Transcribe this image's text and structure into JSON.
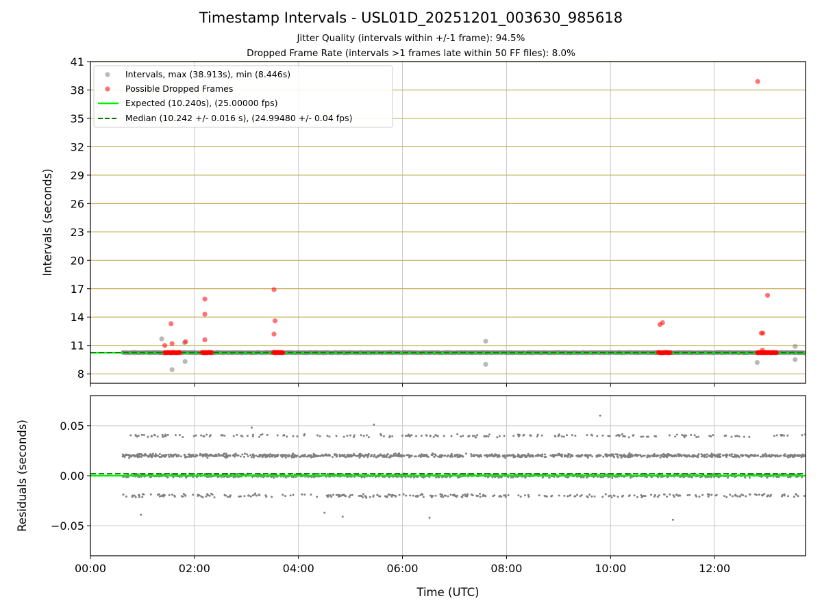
{
  "title": "Timestamp Intervals - USL01D_20251201_003630_985618",
  "subtitle_1": "Jitter Quality (intervals within +/-1 frame): 94.5%",
  "subtitle_2": "Dropped Frame Rate (intervals >1 frames late within 50 FF files): 8.0%",
  "colors": {
    "intervals": "#808080",
    "dropped": "#ff0000",
    "expected": "#00ee00",
    "median": "#007a00",
    "hgrid": "#c8b060",
    "vgrid": "#c8c8c8"
  },
  "chart_data": [
    {
      "type": "scatter",
      "panel": "top",
      "title": "",
      "xlabel": "",
      "ylabel": "Intervals (seconds)",
      "xlim_hours": [
        0,
        13.75
      ],
      "ylim": [
        7,
        41
      ],
      "x_tick_hours": [
        0,
        2,
        4,
        6,
        8,
        10,
        12
      ],
      "y_ticks": [
        8,
        11,
        14,
        17,
        20,
        23,
        26,
        29,
        32,
        35,
        38,
        41
      ],
      "y_tick_labels": [
        "8",
        "11",
        "14",
        "17",
        "20",
        "23",
        "26",
        "29",
        "32",
        "35",
        "38",
        "41"
      ],
      "grid": "horizontal gold lines at y ticks, vertical grey lines at x ticks",
      "legend_position": "top-left",
      "legend": [
        "Intervals, max (38.913s), min (8.446s)",
        "Possible Dropped Frames",
        "Expected (10.240s), (25.00000 fps)",
        "Median (10.242 +/- 0.016 s), (24.99480 +/- 0.04 fps)"
      ],
      "baseline": {
        "x_start_hours": 0.62,
        "x_end_hours": 13.75,
        "y": 10.24
      },
      "expected_value": 10.24,
      "median_value": 10.242,
      "interval_outliers": [
        {
          "x": 1.37,
          "y": 11.7
        },
        {
          "x": 1.57,
          "y": 8.45
        },
        {
          "x": 1.81,
          "y": 11.3
        },
        {
          "x": 1.82,
          "y": 9.3
        },
        {
          "x": 7.6,
          "y": 11.45
        },
        {
          "x": 7.6,
          "y": 9.0
        },
        {
          "x": 12.82,
          "y": 9.2
        },
        {
          "x": 13.55,
          "y": 10.9
        },
        {
          "x": 13.55,
          "y": 9.5
        }
      ],
      "dropped_points": [
        {
          "x": 1.43,
          "y": 11.0
        },
        {
          "x": 1.55,
          "y": 13.3
        },
        {
          "x": 1.57,
          "y": 11.2
        },
        {
          "x": 1.83,
          "y": 11.4
        },
        {
          "x": 2.2,
          "y": 15.9
        },
        {
          "x": 2.2,
          "y": 14.3
        },
        {
          "x": 2.2,
          "y": 11.6
        },
        {
          "x": 3.53,
          "y": 16.9
        },
        {
          "x": 3.55,
          "y": 13.6
        },
        {
          "x": 3.53,
          "y": 12.2
        },
        {
          "x": 10.95,
          "y": 13.2
        },
        {
          "x": 11.0,
          "y": 13.4
        },
        {
          "x": 12.83,
          "y": 38.9
        },
        {
          "x": 12.9,
          "y": 12.3
        },
        {
          "x": 12.93,
          "y": 12.3
        },
        {
          "x": 12.92,
          "y": 10.5
        },
        {
          "x": 13.02,
          "y": 16.3
        }
      ],
      "dropped_clusters": [
        {
          "x_start_hours": 1.43,
          "x_end_hours": 1.73,
          "y": 10.24
        },
        {
          "x_start_hours": 2.15,
          "x_end_hours": 2.33,
          "y": 10.24
        },
        {
          "x_start_hours": 3.52,
          "x_end_hours": 3.7,
          "y": 10.24
        },
        {
          "x_start_hours": 10.92,
          "x_end_hours": 11.15,
          "y": 10.24
        },
        {
          "x_start_hours": 12.82,
          "x_end_hours": 13.2,
          "y": 10.24
        }
      ]
    },
    {
      "type": "scatter",
      "panel": "bottom",
      "title": "",
      "xlabel": "Time (UTC)",
      "ylabel": "Residuals (seconds)",
      "xlim_hours": [
        0,
        13.75
      ],
      "ylim": [
        -0.08,
        0.08
      ],
      "x_tick_hours": [
        0,
        2,
        4,
        6,
        8,
        10,
        12
      ],
      "x_tick_labels": [
        "00:00",
        "02:00",
        "04:00",
        "06:00",
        "08:00",
        "10:00",
        "12:00"
      ],
      "y_ticks": [
        -0.05,
        0.0,
        0.05
      ],
      "y_tick_labels": [
        "−0.05",
        "0.00",
        "0.05"
      ],
      "grid": "light grey lines at x and y ticks",
      "expected_residual": 0.0,
      "median_residual": 0.002,
      "residual_data_start_hours": 0.62,
      "residual_bands": [
        -0.02,
        0.0,
        0.02,
        0.04
      ],
      "residual_band_fractions": [
        0.12,
        0.4,
        0.4,
        0.08
      ],
      "residual_band_spread": 0.0025,
      "residual_point_count": 2600,
      "residual_extremes": [
        {
          "x": 0.97,
          "y": -0.039
        },
        {
          "x": 4.5,
          "y": -0.037
        },
        {
          "x": 4.85,
          "y": -0.041
        },
        {
          "x": 6.52,
          "y": -0.042
        },
        {
          "x": 11.2,
          "y": -0.044
        },
        {
          "x": 9.8,
          "y": 0.06
        },
        {
          "x": 5.45,
          "y": 0.051
        },
        {
          "x": 3.1,
          "y": 0.048
        }
      ]
    }
  ]
}
